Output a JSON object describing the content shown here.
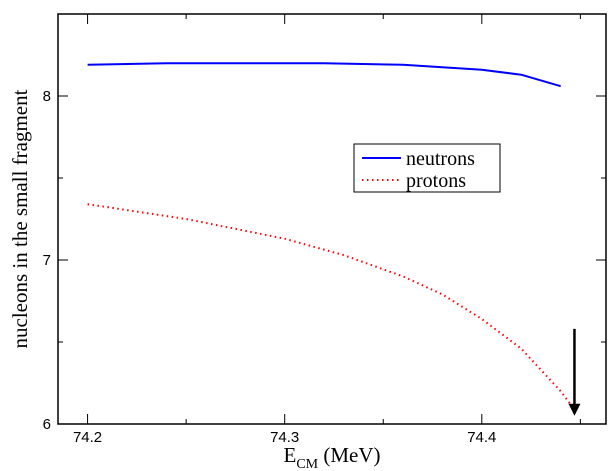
{
  "chart_data": {
    "type": "line",
    "xlabel_main": "E",
    "xlabel_sub": "CM",
    "xlabel_unit": " (MeV)",
    "ylabel": "nucleons in the small fragment",
    "xlim": [
      74.185,
      74.463
    ],
    "ylim": [
      6.0,
      8.5
    ],
    "x_ticks": [
      74.2,
      74.3,
      74.4
    ],
    "x_tick_labels": [
      "74.2",
      "74.3",
      "74.4"
    ],
    "y_ticks": [
      6,
      7,
      8
    ],
    "y_tick_labels": [
      "6",
      "7",
      "8"
    ],
    "grid": false,
    "legend_position": "center-right",
    "series": [
      {
        "name": "neutrons",
        "style": "solid",
        "color": "#0000ff",
        "x": [
          74.2,
          74.24,
          74.28,
          74.32,
          74.36,
          74.4,
          74.42,
          74.44
        ],
        "y": [
          8.19,
          8.2,
          8.2,
          8.2,
          8.19,
          8.16,
          8.13,
          8.06
        ]
      },
      {
        "name": "protons",
        "style": "dotted",
        "color": "#ff0000",
        "x": [
          74.2,
          74.25,
          74.3,
          74.33,
          74.36,
          74.38,
          74.4,
          74.42,
          74.44,
          74.445
        ],
        "y": [
          7.34,
          7.25,
          7.13,
          7.03,
          6.9,
          6.79,
          6.64,
          6.46,
          6.2,
          6.12
        ]
      }
    ],
    "annotation": {
      "type": "arrow",
      "x": 74.447,
      "y_from": 6.58,
      "y_to": 6.05,
      "color": "#000000"
    }
  }
}
